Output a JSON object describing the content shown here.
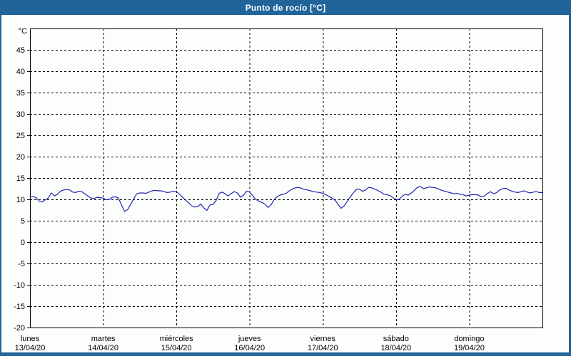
{
  "window": {
    "title": "Punto de rocío [°C]",
    "titlebar_color": "#20649a",
    "title_text_color": "#ffffff",
    "panel_color": "#fcfefc"
  },
  "chart_data": {
    "type": "line",
    "title": "Punto de rocío [°C]",
    "unit_label": "°C",
    "ylabel": "°C",
    "ylim": [
      -20,
      50
    ],
    "ytick_values": [
      45,
      40,
      35,
      30,
      25,
      20,
      15,
      10,
      5,
      0,
      -5,
      -10,
      -15,
      -20
    ],
    "ygrid_values": [
      45,
      40,
      35,
      30,
      25,
      20,
      15,
      10,
      5,
      0,
      -5,
      -10,
      -15
    ],
    "grid": {
      "dashed": true,
      "color": "#000000",
      "frame_color": "#000000"
    },
    "legend_position": "none",
    "hours_per_day": 24,
    "x_days": [
      {
        "name": "lunes",
        "date": "13/04/20"
      },
      {
        "name": "martes",
        "date": "14/04/20"
      },
      {
        "name": "miércoles",
        "date": "15/04/20"
      },
      {
        "name": "jueves",
        "date": "16/04/20"
      },
      {
        "name": "viernes",
        "date": "17/04/20"
      },
      {
        "name": "sábado",
        "date": "18/04/20"
      },
      {
        "name": "domingo",
        "date": "19/04/20"
      }
    ],
    "series": [
      {
        "name": "Punto de rocío",
        "color": "#2323b4",
        "unit": "°C",
        "sample_interval": "1h",
        "values": [
          10.7,
          10.7,
          10.4,
          9.6,
          9.4,
          9.9,
          10.3,
          11.5,
          10.8,
          11.2,
          11.9,
          12.2,
          12.3,
          12.2,
          11.7,
          11.6,
          11.9,
          11.8,
          11.3,
          10.8,
          10.3,
          10.2,
          10.5,
          10.4,
          10.3,
          9.9,
          10.0,
          10.5,
          10.6,
          10.3,
          8.7,
          7.2,
          7.6,
          8.8,
          10.1,
          11.3,
          11.5,
          11.5,
          11.4,
          11.7,
          12.0,
          12.1,
          12.0,
          12.0,
          11.8,
          11.6,
          11.7,
          11.9,
          11.8,
          11.2,
          10.5,
          9.8,
          9.2,
          8.5,
          8.2,
          8.3,
          8.9,
          8.0,
          7.4,
          8.7,
          8.8,
          9.7,
          11.4,
          11.7,
          11.3,
          10.8,
          11.4,
          11.8,
          11.5,
          10.5,
          11.0,
          11.9,
          11.7,
          10.9,
          10.0,
          9.6,
          9.3,
          8.9,
          8.1,
          8.7,
          9.9,
          10.6,
          11.0,
          11.2,
          11.4,
          12.0,
          12.4,
          12.7,
          12.8,
          12.6,
          12.3,
          12.2,
          12.0,
          11.8,
          11.7,
          11.6,
          11.4,
          11.1,
          10.7,
          10.3,
          9.8,
          8.8,
          7.9,
          8.5,
          9.5,
          10.6,
          11.5,
          12.3,
          12.4,
          11.9,
          12.2,
          12.8,
          12.7,
          12.4,
          12.1,
          11.7,
          11.2,
          11.1,
          10.9,
          10.4,
          10.0,
          10.0,
          10.7,
          11.2,
          11.0,
          11.5,
          12.1,
          12.8,
          13.0,
          12.5,
          12.7,
          12.9,
          12.8,
          12.7,
          12.4,
          12.1,
          11.9,
          11.7,
          11.5,
          11.3,
          11.4,
          11.2,
          11.1,
          10.8,
          11.0,
          11.1,
          11.1,
          11.0,
          10.6,
          10.8,
          11.4,
          11.8,
          11.3,
          11.6,
          12.2,
          12.5,
          12.6,
          12.2,
          11.9,
          11.7,
          11.6,
          11.8,
          12.0,
          11.7,
          11.5,
          11.7,
          11.8,
          11.6,
          11.6
        ]
      }
    ]
  }
}
